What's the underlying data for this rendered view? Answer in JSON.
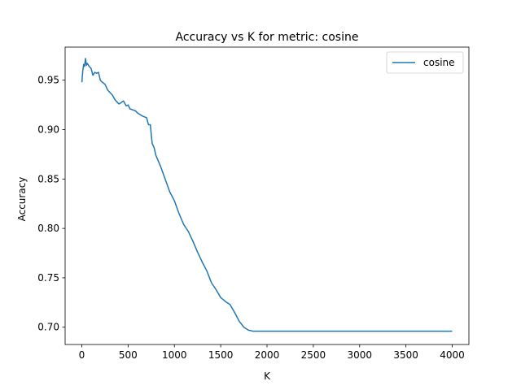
{
  "chart_data": {
    "type": "line",
    "title": "Accuracy vs K for metric: cosine",
    "xlabel": "K",
    "ylabel": "Accuracy",
    "xlim": [
      -180,
      4180
    ],
    "ylim": [
      0.6825,
      0.9835
    ],
    "xticks": [
      0,
      500,
      1000,
      1500,
      2000,
      2500,
      3000,
      3500,
      4000
    ],
    "yticks": [
      0.7,
      0.75,
      0.8,
      0.85,
      0.9,
      0.95
    ],
    "grid": false,
    "legend": {
      "placement": "top-right",
      "entries": [
        "cosine"
      ]
    },
    "series": [
      {
        "name": "cosine",
        "color": "#1f77b4",
        "x": [
          1,
          10,
          20,
          30,
          40,
          50,
          60,
          80,
          100,
          120,
          140,
          160,
          180,
          200,
          220,
          250,
          280,
          300,
          330,
          360,
          400,
          420,
          450,
          480,
          500,
          520,
          550,
          580,
          600,
          650,
          700,
          720,
          740,
          750,
          760,
          780,
          800,
          850,
          900,
          950,
          1000,
          1050,
          1100,
          1150,
          1200,
          1250,
          1300,
          1350,
          1400,
          1450,
          1500,
          1550,
          1600,
          1650,
          1700,
          1750,
          1800,
          1850,
          1900,
          2000,
          2500,
          3000,
          3500,
          4000
        ],
        "y": [
          0.948,
          0.959,
          0.966,
          0.964,
          0.972,
          0.965,
          0.967,
          0.964,
          0.962,
          0.955,
          0.958,
          0.957,
          0.958,
          0.95,
          0.948,
          0.946,
          0.94,
          0.938,
          0.935,
          0.93,
          0.926,
          0.927,
          0.929,
          0.924,
          0.925,
          0.921,
          0.92,
          0.919,
          0.917,
          0.914,
          0.912,
          0.905,
          0.905,
          0.895,
          0.886,
          0.882,
          0.874,
          0.863,
          0.85,
          0.837,
          0.828,
          0.815,
          0.804,
          0.797,
          0.787,
          0.776,
          0.766,
          0.757,
          0.745,
          0.738,
          0.73,
          0.726,
          0.723,
          0.715,
          0.706,
          0.7,
          0.697,
          0.696,
          0.696,
          0.696,
          0.696,
          0.696,
          0.696,
          0.696
        ]
      }
    ]
  }
}
